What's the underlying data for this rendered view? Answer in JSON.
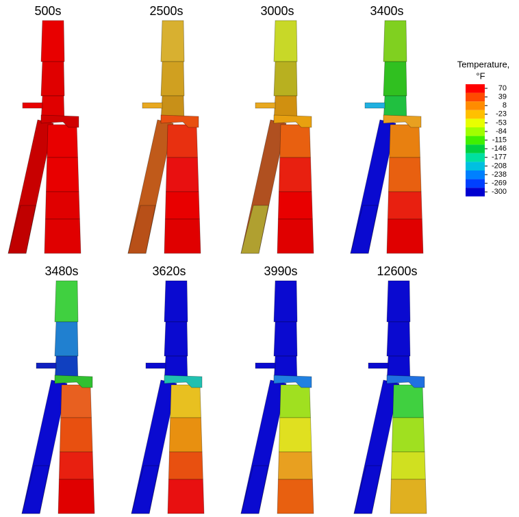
{
  "panels": [
    {
      "label": "500s"
    },
    {
      "label": "2500s"
    },
    {
      "label": "3000s"
    },
    {
      "label": "3400s"
    },
    {
      "label": "3480s"
    },
    {
      "label": "3620s"
    },
    {
      "label": "3990s"
    },
    {
      "label": "12600s"
    }
  ],
  "legend": {
    "title": "Temperature,",
    "unit": "°F",
    "ticks": [
      70,
      39,
      8,
      -23,
      -53,
      -84,
      -115,
      -146,
      -177,
      -208,
      -238,
      -269,
      -300
    ],
    "colors": [
      "#ff0000",
      "#ff4a00",
      "#ff8c00",
      "#ffc000",
      "#e8ff00",
      "#a0ff00",
      "#40f000",
      "#00d040",
      "#00e0a0",
      "#00c0e0",
      "#0080ff",
      "#0040ff",
      "#0000d0"
    ]
  }
}
